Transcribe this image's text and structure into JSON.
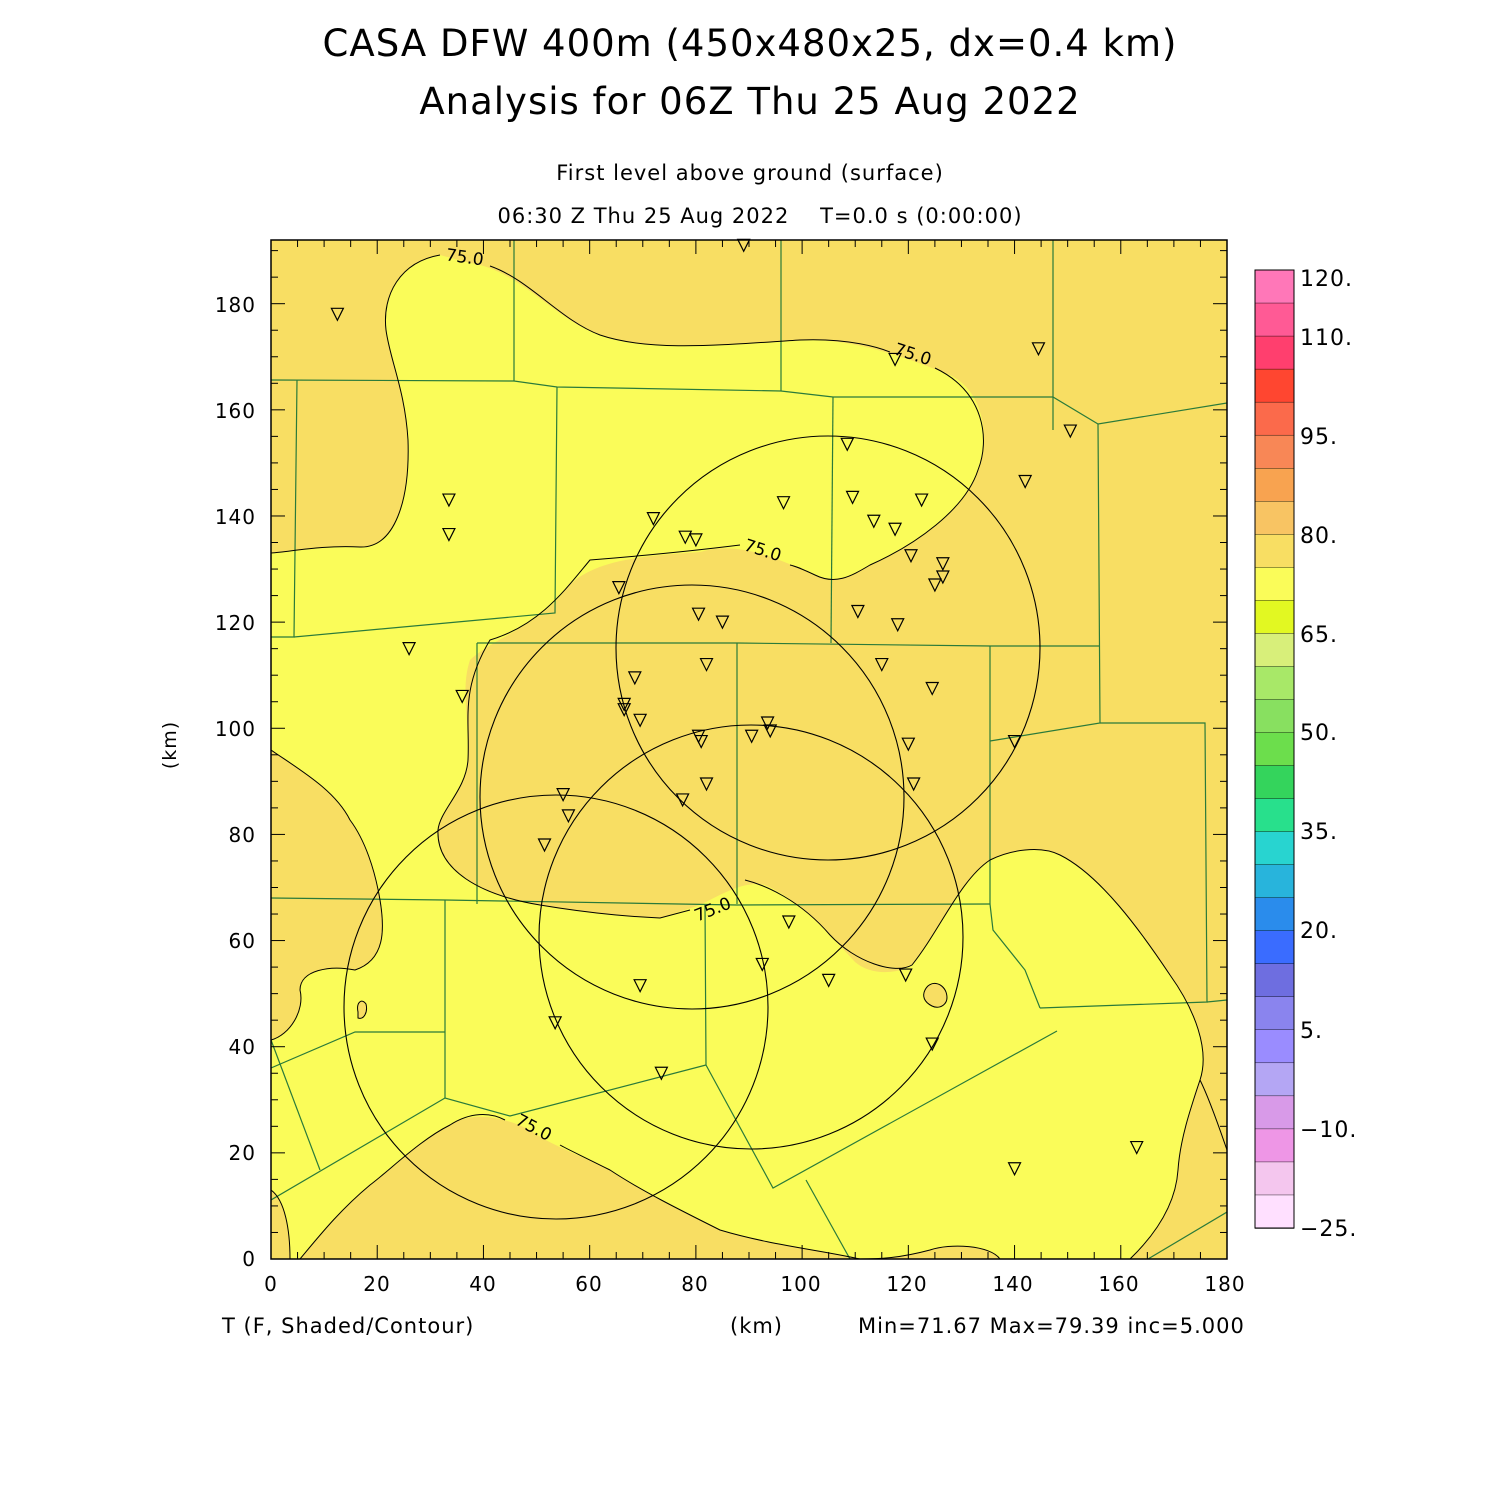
{
  "header": {
    "title_line1": "CASA DFW 400m (450x480x25, dx=0.4 km)",
    "title_line2": "Analysis for 06Z Thu 25 Aug 2022",
    "level": "First level above ground (surface)",
    "valid_time": "06:30 Z Thu 25 Aug 2022",
    "model_time": "T=0.0 s (0:00:00)"
  },
  "axes": {
    "x_ticks": [
      "0",
      "20",
      "40",
      "60",
      "80",
      "100",
      "120",
      "140",
      "160",
      "180"
    ],
    "y_ticks": [
      "0",
      "20",
      "40",
      "60",
      "80",
      "100",
      "120",
      "140",
      "160",
      "180"
    ],
    "x_unit": "(km)",
    "y_unit": "(km)",
    "x_range": [
      0,
      180
    ],
    "y_range": [
      0,
      192
    ]
  },
  "footer": {
    "field": "T (F, Shaded/Contour)",
    "unit": "(km)",
    "stats": "Min=71.67 Max=79.39 inc=5.000"
  },
  "contours": {
    "label": "75.0",
    "value": 75.0
  },
  "colorbar": {
    "labels": [
      "120.",
      "110.",
      "95.",
      "80.",
      "65.",
      "50.",
      "35.",
      "20.",
      "5.",
      "−10.",
      "−25."
    ],
    "colors_top_to_bottom": [
      "#ff77b8",
      "#ff5a95",
      "#ff3f6e",
      "#ff4630",
      "#fb6a4b",
      "#f88756",
      "#f8a350",
      "#f8c463",
      "#f8de63",
      "#fafc59",
      "#e2f822",
      "#d8ef7a",
      "#a8e868",
      "#88e060",
      "#6cde4c",
      "#34d45c",
      "#28e08c",
      "#28d4d0",
      "#28b4dc",
      "#2a8cec",
      "#3a6cff",
      "#6e6ee0",
      "#8a84ee",
      "#9a8cff",
      "#b4a6f4",
      "#d89ae8",
      "#ee96e6",
      "#f4c6ee",
      "#ffe0ff"
    ]
  },
  "colors": {
    "warm_fill": "#f8de63",
    "cool_fill": "#fafc59",
    "county_lines": "#2a7a3a",
    "contour_lines": "#000000"
  },
  "stations": [
    [
      12.5,
      178
    ],
    [
      33.5,
      143
    ],
    [
      33.5,
      136.5
    ],
    [
      26,
      115
    ],
    [
      36,
      106
    ],
    [
      89,
      191
    ],
    [
      117.5,
      169.5
    ],
    [
      144.5,
      171.5
    ],
    [
      150.5,
      156
    ],
    [
      142,
      146.5
    ],
    [
      108.5,
      153.5
    ],
    [
      96.5,
      142.5
    ],
    [
      109.5,
      143.5
    ],
    [
      122.5,
      143
    ],
    [
      113.5,
      139
    ],
    [
      117.5,
      137.5
    ],
    [
      72,
      139.5
    ],
    [
      78,
      136
    ],
    [
      80,
      135.5
    ],
    [
      120.5,
      132.5
    ],
    [
      126.5,
      131
    ],
    [
      126.5,
      128.5
    ],
    [
      125,
      127
    ],
    [
      65.5,
      126.5
    ],
    [
      110.5,
      122
    ],
    [
      118,
      119.5
    ],
    [
      80.5,
      121.5
    ],
    [
      85,
      120
    ],
    [
      115,
      112
    ],
    [
      82,
      112
    ],
    [
      68.5,
      109.5
    ],
    [
      124.5,
      107.5
    ],
    [
      66.5,
      104.5
    ],
    [
      66.5,
      103.5
    ],
    [
      69.5,
      101.5
    ],
    [
      93.5,
      101
    ],
    [
      94,
      99.5
    ],
    [
      90.5,
      98.5
    ],
    [
      80.5,
      98.5
    ],
    [
      81,
      97.5
    ],
    [
      120,
      97
    ],
    [
      140,
      97.5
    ],
    [
      82,
      89.5
    ],
    [
      121,
      89.5
    ],
    [
      77.5,
      86.5
    ],
    [
      55,
      87.5
    ],
    [
      56,
      83.5
    ],
    [
      51.5,
      78
    ],
    [
      97.5,
      63.5
    ],
    [
      92.5,
      55.5
    ],
    [
      119.5,
      53.5
    ],
    [
      105,
      52.5
    ],
    [
      69.5,
      51.5
    ],
    [
      53.5,
      44.5
    ],
    [
      124.5,
      40.5
    ],
    [
      73.5,
      35
    ],
    [
      163,
      21
    ],
    [
      140,
      17
    ]
  ]
}
